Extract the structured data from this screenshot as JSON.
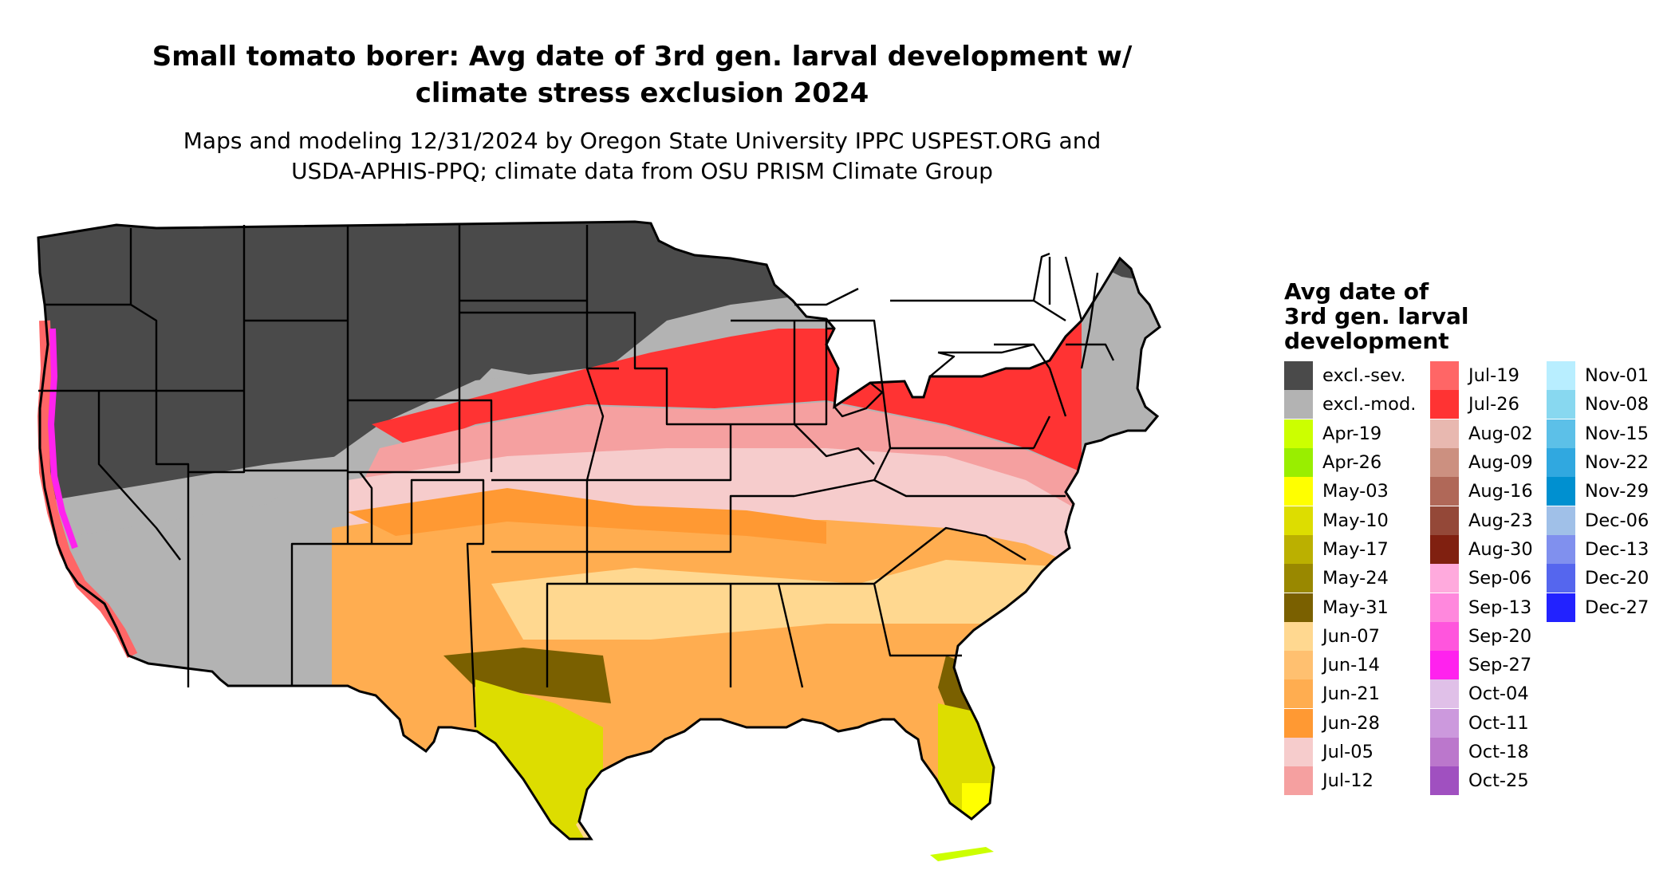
{
  "title_lines": [
    "Small tomato borer: Avg date of 3rd gen. larval development w/",
    "climate stress exclusion 2024"
  ],
  "subtitle_lines": [
    "Maps and modeling 12/31/2024 by Oregon State University IPPC USPEST.ORG and",
    "USDA-APHIS-PPQ; climate data from OSU PRISM Climate Group"
  ],
  "legend": {
    "title_lines": [
      "Avg date of",
      "3rd gen. larval",
      "development"
    ],
    "columns": [
      [
        {
          "label": "excl.-sev.",
          "color": "#4a4a4a"
        },
        {
          "label": "excl.-mod.",
          "color": "#b3b3b3"
        },
        {
          "label": "Apr-19",
          "color": "#ccff00"
        },
        {
          "label": "Apr-26",
          "color": "#99ee00"
        },
        {
          "label": "May-03",
          "color": "#ffff00"
        },
        {
          "label": "May-10",
          "color": "#dddd00"
        },
        {
          "label": "May-17",
          "color": "#bbb000"
        },
        {
          "label": "May-24",
          "color": "#998800"
        },
        {
          "label": "May-31",
          "color": "#7a6000"
        },
        {
          "label": "Jun-07",
          "color": "#ffd890"
        },
        {
          "label": "Jun-14",
          "color": "#ffc070"
        },
        {
          "label": "Jun-21",
          "color": "#ffad50"
        },
        {
          "label": "Jun-28",
          "color": "#ff9933"
        },
        {
          "label": "Jul-05",
          "color": "#f6cccc"
        },
        {
          "label": "Jul-12",
          "color": "#f5a0a0"
        }
      ],
      [
        {
          "label": "Jul-19",
          "color": "#ff6666"
        },
        {
          "label": "Jul-26",
          "color": "#ff3333"
        },
        {
          "label": "Aug-02",
          "color": "#e8b8b0"
        },
        {
          "label": "Aug-09",
          "color": "#cc9080"
        },
        {
          "label": "Aug-16",
          "color": "#b06858"
        },
        {
          "label": "Aug-23",
          "color": "#944838"
        },
        {
          "label": "Aug-30",
          "color": "#802010"
        },
        {
          "label": "Sep-06",
          "color": "#ffaadd"
        },
        {
          "label": "Sep-13",
          "color": "#ff88dd"
        },
        {
          "label": "Sep-20",
          "color": "#ff55dd"
        },
        {
          "label": "Sep-27",
          "color": "#ff22ee"
        },
        {
          "label": "Oct-04",
          "color": "#e0c0e8"
        },
        {
          "label": "Oct-11",
          "color": "#cc99dd"
        },
        {
          "label": "Oct-18",
          "color": "#bb77cc"
        },
        {
          "label": "Oct-25",
          "color": "#a050c0"
        }
      ],
      [
        {
          "label": "Nov-01",
          "color": "#b8eeff"
        },
        {
          "label": "Nov-08",
          "color": "#88d8f0"
        },
        {
          "label": "Nov-15",
          "color": "#5cc0e8"
        },
        {
          "label": "Nov-22",
          "color": "#30a8e0"
        },
        {
          "label": "Nov-29",
          "color": "#0090d0"
        },
        {
          "label": "Dec-06",
          "color": "#a0c0e8"
        },
        {
          "label": "Dec-13",
          "color": "#8090ee"
        },
        {
          "label": "Dec-20",
          "color": "#5566ee"
        },
        {
          "label": "Dec-27",
          "color": "#2222ff"
        }
      ]
    ]
  }
}
